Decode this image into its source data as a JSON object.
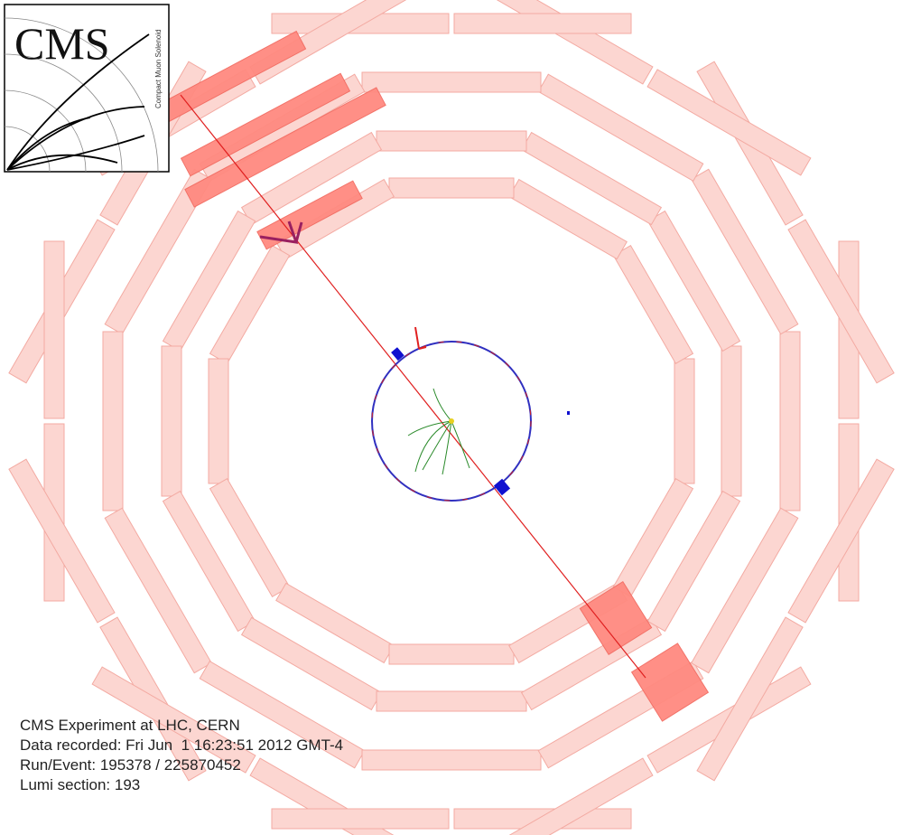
{
  "logo": {
    "title": "CMS",
    "subtitle": "Compact Muon Solenoid"
  },
  "info": {
    "lines": [
      "CMS Experiment at LHC, CERN",
      "Data recorded: Fri Jun  1 16:23:51 2012 GMT-4",
      "Run/Event: 195378 / 225870452",
      "Lumi section: 193"
    ]
  }
}
